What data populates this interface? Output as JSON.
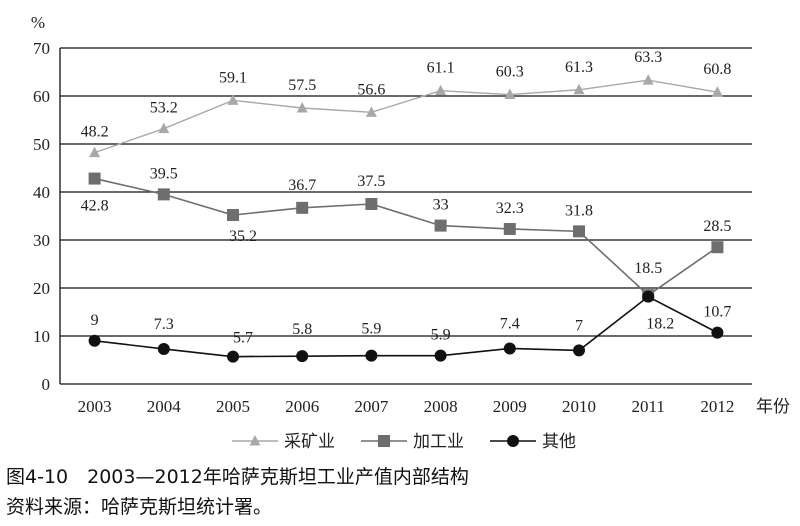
{
  "chart_data": {
    "type": "line",
    "y_unit_label": "%",
    "x_unit_label": "年份",
    "ylim": [
      0,
      70
    ],
    "y_ticks": [
      0,
      10,
      20,
      30,
      40,
      50,
      60,
      70
    ],
    "categories": [
      "2003",
      "2004",
      "2005",
      "2006",
      "2007",
      "2008",
      "2009",
      "2010",
      "2011",
      "2012"
    ],
    "series": [
      {
        "name": "采矿业",
        "marker": "triangle",
        "color": "#a8a8a8",
        "values": [
          48.2,
          53.2,
          59.1,
          57.5,
          56.6,
          61.1,
          60.3,
          61.3,
          63.3,
          60.8
        ],
        "labels": [
          "48.2",
          "53.2",
          "59.1",
          "57.5",
          "56.6",
          "61.1",
          "60.3",
          "61.3",
          "63.3",
          "60.8"
        ]
      },
      {
        "name": "加工业",
        "marker": "square",
        "color": "#6e6e6e",
        "values": [
          42.8,
          39.5,
          35.2,
          36.7,
          37.5,
          33,
          32.3,
          31.8,
          18.5,
          28.5
        ],
        "labels": [
          "42.8",
          "39.5",
          "35.2",
          "36.7",
          "37.5",
          "33",
          "32.3",
          "31.8",
          "18.5",
          "28.5"
        ]
      },
      {
        "name": "其他",
        "marker": "circle",
        "color": "#111111",
        "values": [
          9,
          7.3,
          5.7,
          5.8,
          5.9,
          5.9,
          7.4,
          7,
          18.2,
          10.7
        ],
        "labels": [
          "9",
          "7.3",
          "5.7",
          "5.8",
          "5.9",
          "5.9",
          "7.4",
          "7",
          "18.2",
          "10.7"
        ]
      }
    ],
    "grid": true,
    "legend_position": "bottom"
  },
  "caption": {
    "figure": "图4-10　2003—2012年哈萨克斯坦工业产值内部结构",
    "source": "资料来源：哈萨克斯坦统计署。"
  }
}
